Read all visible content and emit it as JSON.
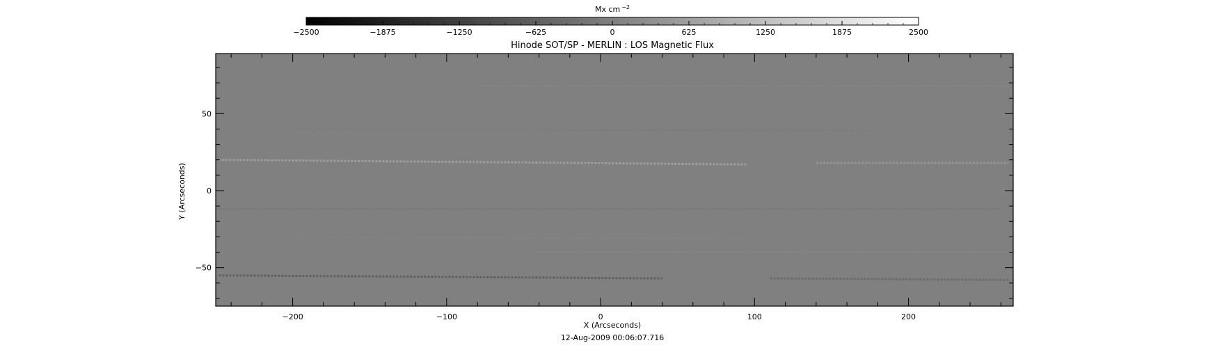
{
  "chart_data": {
    "type": "heatmap",
    "title": "Hinode SOT/SP - MERLIN : LOS Magnetic Flux",
    "xlabel": "X (Arcseconds)",
    "ylabel": "Y (Arcseconds)",
    "footer": "12-Aug-2009 00:06:07.716",
    "xlim": [
      -250,
      268
    ],
    "ylim": [
      -75,
      89
    ],
    "x_ticks": [
      -200,
      -100,
      0,
      100,
      200
    ],
    "y_ticks": [
      -50,
      0,
      50
    ],
    "x_tick_labels": [
      "−200",
      "−100",
      "0",
      "100",
      "200"
    ],
    "y_tick_labels": [
      "−50",
      "0",
      "50"
    ],
    "colorbar": {
      "label": "Mx cm",
      "label_exponent": "−2",
      "range": [
        -2500,
        2500
      ],
      "ticks": [
        -2500,
        -1875,
        -1250,
        -625,
        0,
        625,
        1250,
        1875,
        2500
      ],
      "tick_labels": [
        "−2500",
        "−1875",
        "−1250",
        "−625",
        "0",
        "625",
        "1250",
        "1875",
        "2500"
      ]
    },
    "background_value": 0,
    "features": [
      {
        "kind": "streak",
        "x": [
          -248,
          95
        ],
        "y": [
          20,
          17
        ],
        "value": 700
      },
      {
        "kind": "streak",
        "x": [
          140,
          265
        ],
        "y": [
          18,
          18
        ],
        "value": 500
      },
      {
        "kind": "streak",
        "x": [
          -248,
          40
        ],
        "y": [
          -55,
          -57
        ],
        "value": -700
      },
      {
        "kind": "streak",
        "x": [
          110,
          265
        ],
        "y": [
          -57,
          -58
        ],
        "value": -450
      },
      {
        "kind": "streak",
        "x": [
          -248,
          260
        ],
        "y": [
          -12,
          -12
        ],
        "value": -250
      },
      {
        "kind": "streak",
        "x": [
          -40,
          265
        ],
        "y": [
          -40,
          -40
        ],
        "value": 250
      },
      {
        "kind": "streak",
        "x": [
          -80,
          265
        ],
        "y": [
          68,
          68
        ],
        "value": 200
      },
      {
        "kind": "streak",
        "x": [
          -200,
          180
        ],
        "y": [
          40,
          39
        ],
        "value": -150
      },
      {
        "kind": "streak",
        "x": [
          -220,
          100
        ],
        "y": [
          -30,
          -31
        ],
        "value": 150
      }
    ]
  }
}
